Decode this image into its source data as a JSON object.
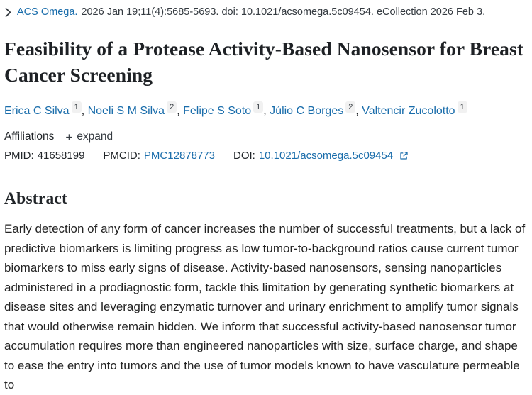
{
  "citation": {
    "journal": "ACS Omega.",
    "details": "2026 Jan 19;11(4):5685-5693. doi: 10.1021/acsomega.5c09454. eCollection 2026 Feb 3."
  },
  "title": "Feasibility of a Protease Activity-Based Nanosensor for Breast Cancer Screening",
  "authors": [
    {
      "name": "Erica C Silva",
      "affiliation": "1"
    },
    {
      "name": "Noeli S M Silva",
      "affiliation": "2"
    },
    {
      "name": "Felipe S Soto",
      "affiliation": "1"
    },
    {
      "name": "Júlio C Borges",
      "affiliation": "2"
    },
    {
      "name": "Valtencir Zucolotto",
      "affiliation": "1"
    }
  ],
  "affiliations": {
    "label": "Affiliations",
    "expand_label": "expand",
    "plus_icon": "+"
  },
  "identifiers": {
    "pmid_label": "PMID:",
    "pmid": "41658199",
    "pmcid_label": "PMCID:",
    "pmcid": "PMC12878773",
    "doi_label": "DOI:",
    "doi": "10.1021/acsomega.5c09454"
  },
  "abstract": {
    "heading": "Abstract",
    "text": "Early detection of any form of cancer increases the number of successful treatments, but a lack of predictive biomarkers is limiting progress as low tumor-to-background ratios cause current tumor biomarkers to miss early signs of disease. Activity-based nanosensors, sensing nanoparticles administered in a prodiagnostic form, tackle this limitation by generating synthetic biomarkers at disease sites and leveraging enzymatic turnover and urinary enrichment to amplify tumor signals that would otherwise remain hidden. We inform that successful activity-based nanosensor tumor accumulation requires more than engineered nanoparticles with size, surface charge, and shape to ease the entry into tumors and the use of tumor models known to have vasculature permeable to"
  },
  "colors": {
    "link": "#1a6dab",
    "text": "#212529",
    "chip_bg": "#f1f1f1"
  }
}
